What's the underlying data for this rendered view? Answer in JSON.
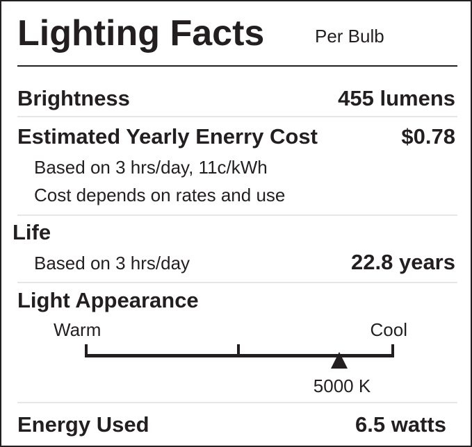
{
  "header": {
    "title": "Lighting Facts",
    "subtitle": "Per Bulb"
  },
  "brightness": {
    "label": "Brightness",
    "value": "455 lumens"
  },
  "cost": {
    "label": "Estimated Yearly Enerry Cost",
    "value": "$0.78",
    "notes": [
      "Based on 3 hrs/day, 11c/kWh",
      "Cost depends on rates and use"
    ]
  },
  "life": {
    "label": "Life",
    "note": "Based on 3 hrs/day",
    "value": "22.8 years"
  },
  "appearance": {
    "label": "Light Appearance",
    "warm": "Warm",
    "cool": "Cool",
    "value": "5000 K"
  },
  "energy": {
    "label": "Energy Used",
    "value": "6.5 watts"
  }
}
